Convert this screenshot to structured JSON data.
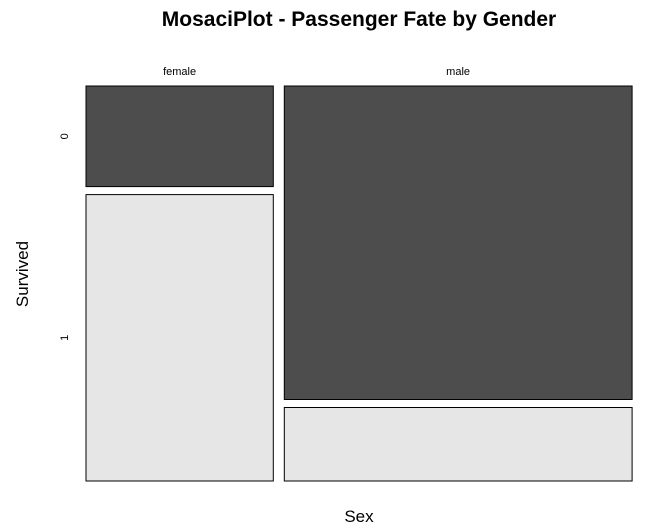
{
  "chart_data": {
    "type": "mosaic",
    "title": "MosaciPlot - Passenger Fate by Gender",
    "xlabel": "Sex",
    "ylabel": "Survived",
    "x_categories": [
      "female",
      "male"
    ],
    "y_categories": [
      "0",
      "1"
    ],
    "x_proportions": [
      0.35,
      0.65
    ],
    "conditional_proportions": {
      "female": {
        "0": 0.26,
        "1": 0.74
      },
      "male": {
        "0": 0.81,
        "1": 0.19
      }
    },
    "colors": {
      "0": "#4d4d4d",
      "1": "#e6e6e6"
    }
  }
}
